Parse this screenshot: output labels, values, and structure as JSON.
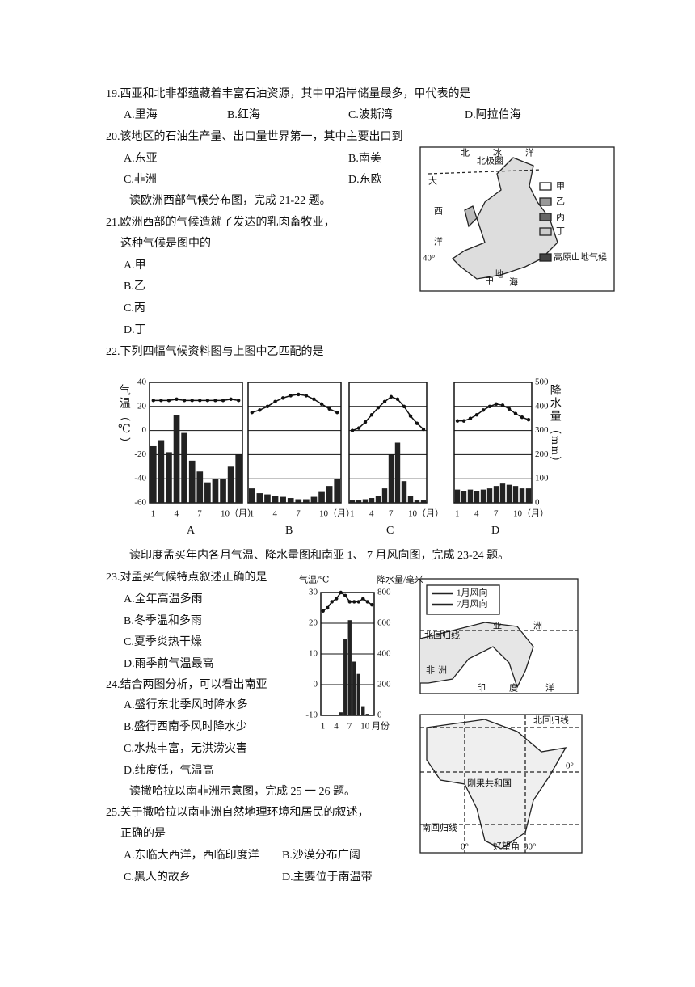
{
  "q19": {
    "stem": "19.西亚和北非都蕴藏着丰富石油资源，其中甲沿岸储量最多，甲代表的是",
    "options": [
      "A.里海",
      "B.红海",
      "C.波斯湾",
      "D.阿拉伯海"
    ]
  },
  "q20": {
    "stem": "20.该地区的石油生产量、出口量世界第一，其中主要出口到",
    "options": [
      "A.东亚",
      "B.南美",
      "C.非洲",
      "D.东欧"
    ]
  },
  "intro1": "读欧洲西部气候分布图，完成 21-22 题。",
  "q21": {
    "stem": [
      "21.欧洲西部的气候造就了发达的乳肉畜牧业，",
      "这种气候是图中的"
    ],
    "options": [
      "A.甲",
      "B.乙",
      "C.丙",
      "D.丁"
    ]
  },
  "q22": {
    "stem": "22.下列四幅气候资料图与上图中乙匹配的是"
  },
  "europe_map": {
    "labels": [
      "北",
      "北极圈",
      "冰",
      "洋",
      "大",
      "西",
      "洋",
      "40°",
      "地",
      "中",
      "海"
    ],
    "legend": [
      "甲",
      "乙",
      "丙",
      "丁",
      "高原山地气候"
    ]
  },
  "climate_charts": {
    "y_label": "气温（℃）",
    "y2_label": "降水量（mm）",
    "ylim": [
      -60,
      40
    ],
    "yticks": [
      40,
      20,
      0,
      -20,
      -40,
      -60
    ],
    "y2lim": [
      0,
      500
    ],
    "y2ticks": [
      500,
      400,
      300,
      200,
      100,
      0
    ],
    "xticks": [
      1,
      4,
      7,
      {
        "value": 10,
        "label": "10（月）"
      }
    ],
    "panels": [
      {
        "name": "A",
        "temperature": [
          25,
          25,
          25,
          26,
          25,
          25,
          25,
          25,
          25,
          25,
          26,
          25
        ],
        "precipitation": [
          235,
          260,
          210,
          365,
          290,
          175,
          130,
          85,
          100,
          100,
          150,
          200
        ]
      },
      {
        "name": "B",
        "temperature": [
          15,
          17,
          20,
          24,
          27,
          29,
          30,
          29,
          26,
          22,
          18,
          15
        ],
        "precipitation": [
          60,
          40,
          35,
          30,
          25,
          20,
          15,
          15,
          25,
          45,
          70,
          100
        ]
      },
      {
        "name": "C",
        "temperature": [
          0,
          2,
          7,
          13,
          19,
          24,
          28,
          26,
          20,
          12,
          6,
          1
        ],
        "precipitation": [
          10,
          10,
          15,
          20,
          30,
          60,
          200,
          250,
          90,
          30,
          10,
          10
        ]
      },
      {
        "name": "D",
        "temperature": [
          8,
          8,
          10,
          13,
          17,
          20,
          22,
          21,
          18,
          14,
          11,
          9
        ],
        "precipitation": [
          55,
          50,
          55,
          50,
          55,
          60,
          70,
          80,
          75,
          70,
          60,
          60
        ]
      }
    ]
  },
  "intro2": "读印度孟买年内各月气温、降水量图和南亚 1、 7 月风向图，完成 23-24 题。",
  "q23": {
    "stem": "23.对孟买气候特点叙述正确的是",
    "options": [
      "A.全年高温多雨",
      "B.冬季温和多雨",
      "C.夏季炎热干燥",
      "D.雨季前气温最高"
    ]
  },
  "q24": {
    "stem": "24.结合两图分析，可以看出南亚",
    "options": [
      "A.盛行东北季风时降水多",
      "B.盛行西南季风时降水少",
      "C.水热丰富，无洪涝灾害",
      "D.纬度低，气温高"
    ]
  },
  "mumbai_chart": {
    "y_label": "气温/℃",
    "y2_label": "降水量/毫米",
    "ylim": [
      -10,
      30
    ],
    "yticks": [
      30,
      20,
      10,
      0,
      -10
    ],
    "y2lim": [
      0,
      800
    ],
    "y2ticks": [
      800,
      600,
      400,
      200,
      0
    ],
    "xticks": [
      1,
      4,
      7,
      {
        "value": 10,
        "label": "10 月份"
      }
    ],
    "temperature": [
      24,
      25,
      27,
      28,
      30,
      29,
      27,
      27,
      27,
      28,
      27,
      26
    ],
    "precipitation": [
      0,
      0,
      0,
      0,
      20,
      500,
      620,
      350,
      270,
      60,
      10,
      0
    ]
  },
  "south_asia_map": {
    "legend": [
      "1月风向",
      "7月风向"
    ],
    "labels": [
      "亚",
      "洲",
      "北回归线",
      "非",
      "洲",
      "印",
      "度",
      "洋"
    ]
  },
  "intro3": "读撒哈拉以南非洲示意图，完成 25 一 26 题。",
  "africa_map": {
    "labels": [
      "北回归线",
      "0°",
      "刚果共和国",
      "南回归线",
      "0°",
      "好望角",
      "30°"
    ]
  },
  "q25": {
    "stem": [
      "25.关于撒哈拉以南非洲自然地理环境和居民的叙述，",
      "正确的是"
    ],
    "options": [
      "A.东临大西洋，西临印度洋",
      "B.沙漠分布广阔",
      "C.黑人的故乡",
      "D.主要位于南温带"
    ]
  }
}
